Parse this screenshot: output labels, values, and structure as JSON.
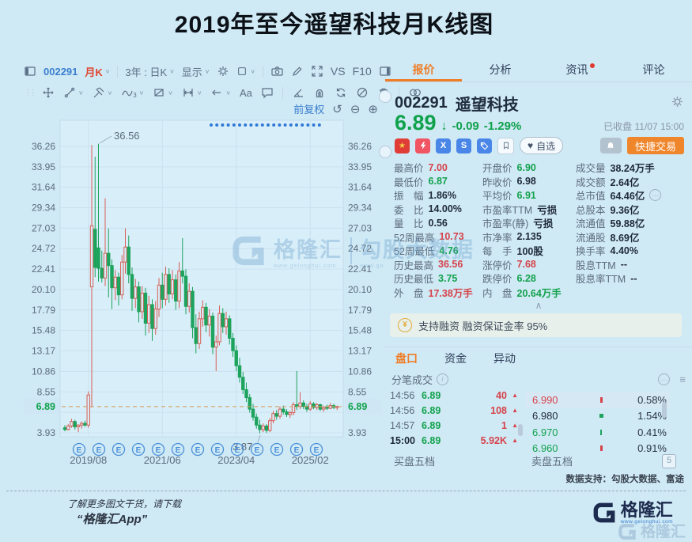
{
  "title": "2019年至今遥望科技月K线图",
  "chart_toolbar": {
    "symbol": "002291",
    "period": "月K",
    "range_compare": "3年 : 日K",
    "display": "显示",
    "vs_label": "VS",
    "f10_label": "F10",
    "adjust_label": "前复权"
  },
  "icons": {
    "undo": "↺",
    "zoom_out": "⊖",
    "zoom_in": "⊕",
    "collapse_up": "∧",
    "more": "…",
    "list": "≡",
    "info": "i",
    "heart": "♥",
    "star": "★",
    "down_arrow": "↓",
    "up_triangle": "▲",
    "yen": "¥",
    "text_tool": "Aa",
    "wave_sub": "3",
    "badge_x": "X",
    "badge_s": "S",
    "drag_dots": "⋮⋮"
  },
  "chart_data": {
    "type": "candlestick",
    "period": "monthly",
    "start_month": "2019/01",
    "y_ticks": [
      36.26,
      33.95,
      31.64,
      29.34,
      27.03,
      24.72,
      22.41,
      20.1,
      17.79,
      15.48,
      13.17,
      10.86,
      8.55,
      6.24,
      3.93
    ],
    "y_ticks_hidden": [
      6.24
    ],
    "x_labels": [
      "2019/08",
      "2021/06",
      "2023/04",
      "2025/02"
    ],
    "x_label_candle_idx": [
      7,
      29,
      51,
      73
    ],
    "current_price": 6.89,
    "annotation_high": "36.56",
    "annotation_low": "3.87",
    "event_marker": "E",
    "event_marker_count": 13,
    "colors": {
      "up": "#d95f55",
      "down": "#1da35d",
      "dashed_line": "#d89a52",
      "dots": "#3079d6"
    },
    "candles": [
      [
        4.5,
        4.8,
        4.1,
        4.3
      ],
      [
        4.3,
        4.9,
        4.2,
        4.7
      ],
      [
        4.7,
        5.5,
        4.5,
        5.2
      ],
      [
        5.2,
        5.4,
        4.3,
        4.6
      ],
      [
        4.6,
        4.9,
        4.0,
        4.8
      ],
      [
        4.8,
        5.2,
        4.4,
        5.0
      ],
      [
        5.0,
        5.3,
        4.6,
        4.8
      ],
      [
        4.8,
        8.6,
        4.5,
        8.2
      ],
      [
        20.4,
        36.4,
        6.8,
        27.3
      ],
      [
        26.9,
        35.1,
        21.5,
        22.6
      ],
      [
        24.8,
        36.56,
        21.0,
        22.5
      ],
      [
        22.5,
        24.5,
        20.9,
        21.4
      ],
      [
        21.4,
        30.4,
        20.5,
        24.2
      ],
      [
        24.2,
        27.0,
        19.2,
        22.8
      ],
      [
        22.8,
        23.5,
        17.9,
        20.3
      ],
      [
        20.3,
        22.3,
        18.9,
        21.5
      ],
      [
        21.5,
        22.0,
        18.3,
        19.5
      ],
      [
        19.5,
        24.0,
        19.0,
        23.2
      ],
      [
        23.2,
        27.0,
        21.9,
        24.9
      ],
      [
        24.9,
        26.2,
        20.8,
        21.8
      ],
      [
        21.8,
        22.6,
        17.7,
        19.1
      ],
      [
        19.1,
        21.3,
        18.0,
        20.4
      ],
      [
        20.4,
        21.0,
        16.4,
        17.6
      ],
      [
        17.6,
        20.5,
        16.8,
        19.7
      ],
      [
        19.7,
        20.3,
        14.9,
        16.3
      ],
      [
        16.3,
        19.4,
        15.2,
        18.4
      ],
      [
        18.4,
        19.0,
        14.3,
        15.7
      ],
      [
        15.7,
        18.8,
        15.0,
        17.9
      ],
      [
        17.9,
        21.4,
        17.0,
        20.6
      ],
      [
        20.6,
        22.0,
        18.0,
        19.0
      ],
      [
        19.0,
        22.7,
        18.3,
        21.8
      ],
      [
        21.8,
        22.5,
        18.6,
        19.6
      ],
      [
        19.6,
        22.3,
        19.0,
        21.2
      ],
      [
        21.2,
        21.8,
        17.8,
        18.8
      ],
      [
        18.8,
        23.2,
        18.0,
        22.2
      ],
      [
        22.2,
        25.9,
        20.8,
        21.6
      ],
      [
        21.6,
        22.4,
        17.3,
        18.2
      ],
      [
        18.2,
        20.8,
        17.5,
        19.9
      ],
      [
        19.9,
        20.4,
        14.6,
        15.8
      ],
      [
        15.8,
        17.3,
        12.9,
        14.0
      ],
      [
        14.0,
        17.6,
        13.4,
        16.8
      ],
      [
        16.8,
        18.9,
        15.9,
        18.1
      ],
      [
        18.1,
        18.6,
        15.3,
        16.1
      ],
      [
        16.1,
        17.9,
        14.8,
        17.1
      ],
      [
        17.1,
        17.5,
        12.8,
        13.6
      ],
      [
        13.6,
        14.9,
        10.9,
        14.2
      ],
      [
        14.2,
        18.3,
        13.8,
        17.4
      ],
      [
        17.4,
        18.0,
        15.2,
        15.9
      ],
      [
        15.9,
        17.6,
        15.0,
        16.8
      ],
      [
        16.8,
        17.2,
        13.9,
        14.6
      ],
      [
        14.6,
        15.2,
        12.5,
        13.2
      ],
      [
        13.2,
        13.8,
        10.9,
        11.5
      ],
      [
        11.5,
        12.4,
        9.6,
        10.2
      ],
      [
        10.2,
        10.8,
        8.3,
        8.8
      ],
      [
        8.8,
        9.6,
        7.4,
        7.9
      ],
      [
        7.9,
        8.3,
        6.2,
        6.6
      ],
      [
        6.6,
        7.2,
        5.3,
        5.7
      ],
      [
        5.7,
        6.1,
        4.4,
        4.8
      ],
      [
        4.8,
        5.4,
        3.87,
        4.3
      ],
      [
        4.3,
        5.0,
        4.0,
        4.7
      ],
      [
        4.7,
        4.9,
        3.9,
        4.2
      ],
      [
        4.2,
        5.6,
        4.0,
        5.3
      ],
      [
        5.3,
        6.4,
        5.0,
        6.1
      ],
      [
        6.1,
        6.5,
        5.4,
        5.8
      ],
      [
        5.8,
        6.9,
        5.5,
        6.6
      ],
      [
        6.6,
        7.0,
        6.0,
        6.3
      ],
      [
        6.3,
        6.6,
        5.7,
        6.0
      ],
      [
        6.0,
        6.4,
        5.6,
        6.2
      ],
      [
        6.2,
        7.4,
        5.9,
        7.1
      ],
      [
        7.1,
        10.9,
        6.5,
        6.9
      ],
      [
        6.9,
        8.5,
        6.6,
        7.3
      ],
      [
        7.3,
        7.6,
        6.6,
        6.9
      ],
      [
        6.9,
        7.2,
        6.3,
        6.6
      ],
      [
        6.6,
        7.5,
        6.4,
        7.2
      ],
      [
        7.2,
        7.4,
        6.6,
        6.8
      ],
      [
        6.8,
        7.3,
        6.5,
        7.1
      ],
      [
        7.1,
        7.2,
        6.4,
        6.6
      ],
      [
        6.6,
        7.0,
        6.3,
        6.8
      ],
      [
        6.8,
        7.1,
        6.5,
        6.7
      ],
      [
        6.7,
        7.3,
        6.6,
        7.0
      ],
      [
        7.0,
        7.2,
        6.6,
        6.8
      ],
      [
        6.8,
        7.0,
        6.5,
        6.89
      ]
    ]
  },
  "quote_panel": {
    "tabs": [
      {
        "label": "报价",
        "active": true
      },
      {
        "label": "分析",
        "active": false
      },
      {
        "label": "资讯",
        "active": false,
        "dot": true
      },
      {
        "label": "评论",
        "active": false
      }
    ],
    "code": "002291",
    "name": "遥望科技",
    "price": "6.89",
    "change": "-0.09",
    "change_pct": "-1.29%",
    "market_status": "已收盘 11/07 15:00",
    "fav_label": "自选",
    "quick_trade": "快捷交易",
    "stats": [
      [
        {
          "l": "最高价",
          "v": "7.00",
          "c": "red"
        },
        {
          "l": "开盘价",
          "v": "6.90",
          "c": "green"
        },
        {
          "l": "成交量",
          "v": "38.24万手",
          "c": "dark"
        }
      ],
      [
        {
          "l": "最低价",
          "v": "6.87",
          "c": "green"
        },
        {
          "l": "昨收价",
          "v": "6.98",
          "c": "dark"
        },
        {
          "l": "成交额",
          "v": "2.64亿",
          "c": "dark"
        }
      ],
      [
        {
          "l": "振　幅",
          "v": "1.86%",
          "c": "dark"
        },
        {
          "l": "平均价",
          "v": "6.91",
          "c": "green"
        },
        {
          "l": "总市值",
          "v": "64.46亿",
          "c": "dark",
          "more": true
        }
      ],
      [
        {
          "l": "委　比",
          "v": "14.00%",
          "c": "dark"
        },
        {
          "l": "市盈率TTM",
          "v": "亏损",
          "c": "dark"
        },
        {
          "l": "总股本",
          "v": "9.36亿",
          "c": "dark"
        }
      ],
      [
        {
          "l": "量　比",
          "v": "0.56",
          "c": "dark"
        },
        {
          "l": "市盈率(静)",
          "v": "亏损",
          "c": "dark"
        },
        {
          "l": "流通值",
          "v": "59.88亿",
          "c": "dark"
        }
      ],
      [
        {
          "l": "52周最高",
          "v": "10.73",
          "c": "red"
        },
        {
          "l": "市净率",
          "v": "2.135",
          "c": "dark"
        },
        {
          "l": "流通股",
          "v": "8.69亿",
          "c": "dark"
        }
      ],
      [
        {
          "l": "52周最低",
          "v": "4.76",
          "c": "green"
        },
        {
          "l": "每　手",
          "v": "100股",
          "c": "dark"
        },
        {
          "l": "换手率",
          "v": "4.40%",
          "c": "dark"
        }
      ],
      [
        {
          "l": "历史最高",
          "v": "36.56",
          "c": "red"
        },
        {
          "l": "涨停价",
          "v": "7.68",
          "c": "red"
        },
        {
          "l": "股息TTM",
          "v": "--",
          "c": "dark"
        }
      ],
      [
        {
          "l": "历史最低",
          "v": "3.75",
          "c": "green"
        },
        {
          "l": "跌停价",
          "v": "6.28",
          "c": "green"
        },
        {
          "l": "股息率TTM",
          "v": "--",
          "c": "dark"
        }
      ],
      [
        {
          "l": "外　盘",
          "v": "17.38万手",
          "c": "red"
        },
        {
          "l": "内　盘",
          "v": "20.64万手",
          "c": "green"
        }
      ]
    ],
    "margin_banner": "支持融资 融资保证金率 95%",
    "subtabs": [
      {
        "label": "盘口",
        "active": true
      },
      {
        "label": "资金",
        "active": false
      },
      {
        "label": "异动",
        "active": false
      }
    ],
    "tick_title": "分笔成交",
    "ticks": [
      {
        "t": "14:56",
        "p": "6.89",
        "v": "40"
      },
      {
        "t": "14:56",
        "p": "6.89",
        "v": "108"
      },
      {
        "t": "14:57",
        "p": "6.89",
        "v": "1"
      },
      {
        "t": "15:00",
        "p": "6.89",
        "v": "5.92K",
        "bold": true
      }
    ],
    "levels": [
      {
        "p": "6.990",
        "pc": "red",
        "bar": "red-s",
        "pct": "0.58%",
        "hl": true
      },
      {
        "p": "6.980",
        "pc": "dark",
        "bar": "green-m",
        "pct": "1.54%",
        "hl": false
      },
      {
        "p": "6.970",
        "pc": "green",
        "bar": "green-t",
        "pct": "0.41%",
        "hl": false
      },
      {
        "p": "6.960",
        "pc": "green",
        "bar": "red-s",
        "pct": "0.91%",
        "hl": false
      }
    ],
    "buy5": "买盘五档",
    "sell5": "卖盘五档",
    "level_badge": "5",
    "data_support": "数据支持：勾股大数据、富途"
  },
  "watermark": {
    "brand": "格隆汇",
    "url": "www.gelonghui.com",
    "partner": "勾股大数据",
    "partner_url": "www.go"
  },
  "footer": {
    "line1": "了解更多图文干货，请下载",
    "line2": "“格隆汇App”",
    "brand": "格隆汇",
    "brand_url": "www.gelonghui.com"
  }
}
